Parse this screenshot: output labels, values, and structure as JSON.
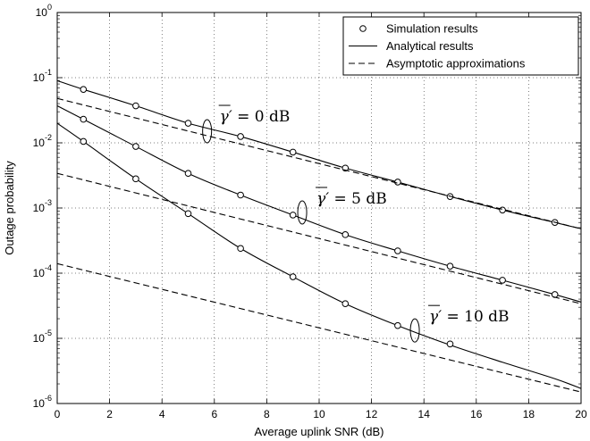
{
  "chart_data": {
    "type": "line",
    "xlabel": "Average uplink SNR (dB)",
    "ylabel": "Outage probability",
    "xlim": [
      0,
      20
    ],
    "ylim": [
      1e-06,
      1
    ],
    "yscale": "log",
    "x_ticks": [
      0,
      2,
      4,
      6,
      8,
      10,
      12,
      14,
      16,
      18,
      20
    ],
    "y_tick_labels": [
      {
        "base": "10",
        "exp": "-6"
      },
      {
        "base": "10",
        "exp": "-5"
      },
      {
        "base": "10",
        "exp": "-4"
      },
      {
        "base": "10",
        "exp": "-3"
      },
      {
        "base": "10",
        "exp": "-2"
      },
      {
        "base": "10",
        "exp": "-1"
      },
      {
        "base": "10",
        "exp": "0"
      }
    ],
    "grid": true,
    "legend_position": "top-right",
    "legend": [
      {
        "label": "Simulation results",
        "style": "marker-circle"
      },
      {
        "label": "Analytical results",
        "style": "solid"
      },
      {
        "label": "Asymptotic approximations",
        "style": "dashed"
      }
    ],
    "annotations": [
      {
        "text_prefix": "γ′ = ",
        "text_value": "0 dB",
        "at": [
          6.2,
          0.02
        ]
      },
      {
        "text_prefix": "γ′ = ",
        "text_value": "5 dB",
        "at": [
          9.9,
          0.0011
        ]
      },
      {
        "text_prefix": "γ′ = ",
        "text_value": "10 dB",
        "at": [
          14.2,
          1.7e-05
        ]
      }
    ],
    "series": [
      {
        "style": "analytical",
        "x": [
          0,
          1,
          3,
          5,
          7,
          9,
          11,
          13,
          15,
          17,
          19,
          20
        ],
        "values": [
          0.09,
          0.066,
          0.037,
          0.02,
          0.0125,
          0.0072,
          0.0041,
          0.0025,
          0.0015,
          0.00093,
          0.0006,
          0.00048
        ]
      },
      {
        "style": "analytical",
        "x": [
          0,
          1,
          3,
          5,
          7,
          9,
          11,
          13,
          15,
          17,
          19,
          20
        ],
        "values": [
          0.037,
          0.023,
          0.0088,
          0.0034,
          0.00158,
          0.00078,
          0.00039,
          0.00022,
          0.000128,
          7.8e-05,
          4.7e-05,
          3.6e-05
        ]
      },
      {
        "style": "analytical",
        "x": [
          0,
          1,
          3,
          5,
          7,
          9,
          11,
          13,
          15,
          17,
          19,
          20
        ],
        "values": [
          0.02,
          0.0105,
          0.0028,
          0.00082,
          0.00024,
          8.8e-05,
          3.4e-05,
          1.57e-05,
          7.9e-06,
          4.3e-06,
          2.4e-06,
          1.7e-06
        ]
      },
      {
        "style": "simulation",
        "x": [
          1,
          3,
          5,
          7,
          9,
          11,
          13,
          15,
          17,
          19
        ],
        "values": [
          0.066,
          0.037,
          0.02,
          0.0125,
          0.0072,
          0.0041,
          0.0025,
          0.0015,
          0.00093,
          0.0006
        ]
      },
      {
        "style": "simulation",
        "x": [
          1,
          3,
          5,
          7,
          9,
          11,
          13,
          15,
          17,
          19
        ],
        "values": [
          0.023,
          0.0088,
          0.0034,
          0.00158,
          0.00078,
          0.00039,
          0.00022,
          0.000128,
          7.8e-05,
          4.7e-05
        ]
      },
      {
        "style": "simulation",
        "x": [
          1,
          3,
          5,
          7,
          9,
          11,
          13,
          15
        ],
        "values": [
          0.0105,
          0.0028,
          0.00082,
          0.00024,
          8.8e-05,
          3.4e-05,
          1.57e-05,
          8.2e-06
        ]
      },
      {
        "style": "asymptotic",
        "x": [
          0,
          20
        ],
        "values": [
          0.048,
          0.00048
        ]
      },
      {
        "style": "asymptotic",
        "x": [
          0,
          20
        ],
        "values": [
          0.0034,
          3.4e-05
        ]
      },
      {
        "style": "asymptotic",
        "x": [
          0,
          20
        ],
        "values": [
          0.00014,
          1.5e-06
        ]
      }
    ]
  }
}
